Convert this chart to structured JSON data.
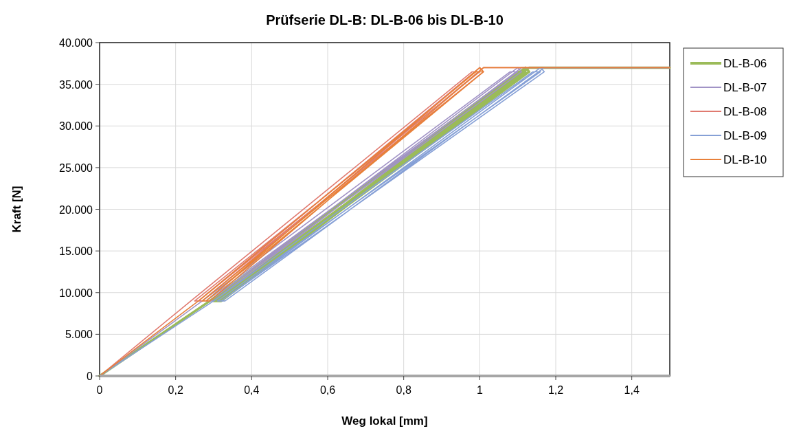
{
  "chart_data": {
    "type": "line",
    "title": "Prüfserie DL-B: DL-B-06 bis DL-B-10",
    "xlabel": "Weg lokal  [mm]",
    "ylabel": "Kraft [N]",
    "xlim": [
      0,
      1.5
    ],
    "ylim": [
      0,
      40000
    ],
    "xticks": [
      0,
      {
        "value": 0.2,
        "label": "0,2"
      },
      {
        "value": 0.4,
        "label": "0,4"
      },
      {
        "value": 0.6,
        "label": "0,6"
      },
      {
        "value": 0.8,
        "label": "0,8"
      },
      1,
      {
        "value": 1.2,
        "label": "1,2"
      },
      {
        "value": 1.4,
        "label": "1,4"
      }
    ],
    "yticks": [
      0,
      {
        "value": 5000,
        "label": "5.000"
      },
      {
        "value": 10000,
        "label": "10.000"
      },
      {
        "value": 15000,
        "label": "15.000"
      },
      {
        "value": 20000,
        "label": "20.000"
      },
      {
        "value": 25000,
        "label": "25.000"
      },
      {
        "value": 30000,
        "label": "30.000"
      },
      {
        "value": 35000,
        "label": "35.000"
      },
      {
        "value": 40000,
        "label": "40.000"
      }
    ],
    "grid": true,
    "legend": "right",
    "marker": "none",
    "line_style": "solid",
    "series": [
      {
        "name": "DL-B-06",
        "color": "#9bbb59",
        "x": [
          0,
          0.29,
          1.1,
          1.12,
          0.3,
          0.31,
          1.12,
          1.13,
          0.31,
          0.32,
          1.13,
          1.5
        ],
        "values": [
          0,
          9000,
          36500,
          36500,
          9000,
          9000,
          37000,
          36500,
          9000,
          9000,
          37000,
          37000
        ]
      },
      {
        "name": "DL-B-07",
        "color": "#a193c6",
        "x": [
          0,
          0.27,
          1.08,
          1.1,
          0.28,
          0.29,
          1.1,
          1.11,
          0.29,
          0.3,
          1.11,
          1.5
        ],
        "values": [
          0,
          9000,
          36500,
          36500,
          9000,
          9000,
          37000,
          36500,
          9000,
          9000,
          37000,
          37000
        ]
      },
      {
        "name": "DL-B-08",
        "color": "#e07a70",
        "x": [
          0,
          0.24,
          0.98,
          1.0,
          0.25,
          0.26,
          1.0,
          1.01,
          0.26,
          0.27,
          1.01,
          1.5
        ],
        "values": [
          0,
          9000,
          36500,
          36500,
          9000,
          9000,
          37000,
          36500,
          9000,
          9000,
          37000,
          37000
        ]
      },
      {
        "name": "DL-B-09",
        "color": "#86a0d6",
        "x": [
          0,
          0.3,
          1.14,
          1.16,
          0.31,
          0.32,
          1.16,
          1.17,
          0.32,
          0.33,
          1.17,
          1.5
        ],
        "values": [
          0,
          9000,
          36500,
          36500,
          9000,
          9000,
          37000,
          36500,
          9000,
          9000,
          37000,
          37000
        ]
      },
      {
        "name": "DL-B-10",
        "color": "#e8803a",
        "x": [
          0,
          0.26,
          0.99,
          1.01,
          0.27,
          0.28,
          1.0,
          1.01,
          0.28,
          0.29,
          1.01,
          1.5
        ],
        "values": [
          0,
          9000,
          36500,
          36500,
          9000,
          9000,
          37000,
          36500,
          9000,
          9000,
          37000,
          37000
        ]
      }
    ]
  }
}
